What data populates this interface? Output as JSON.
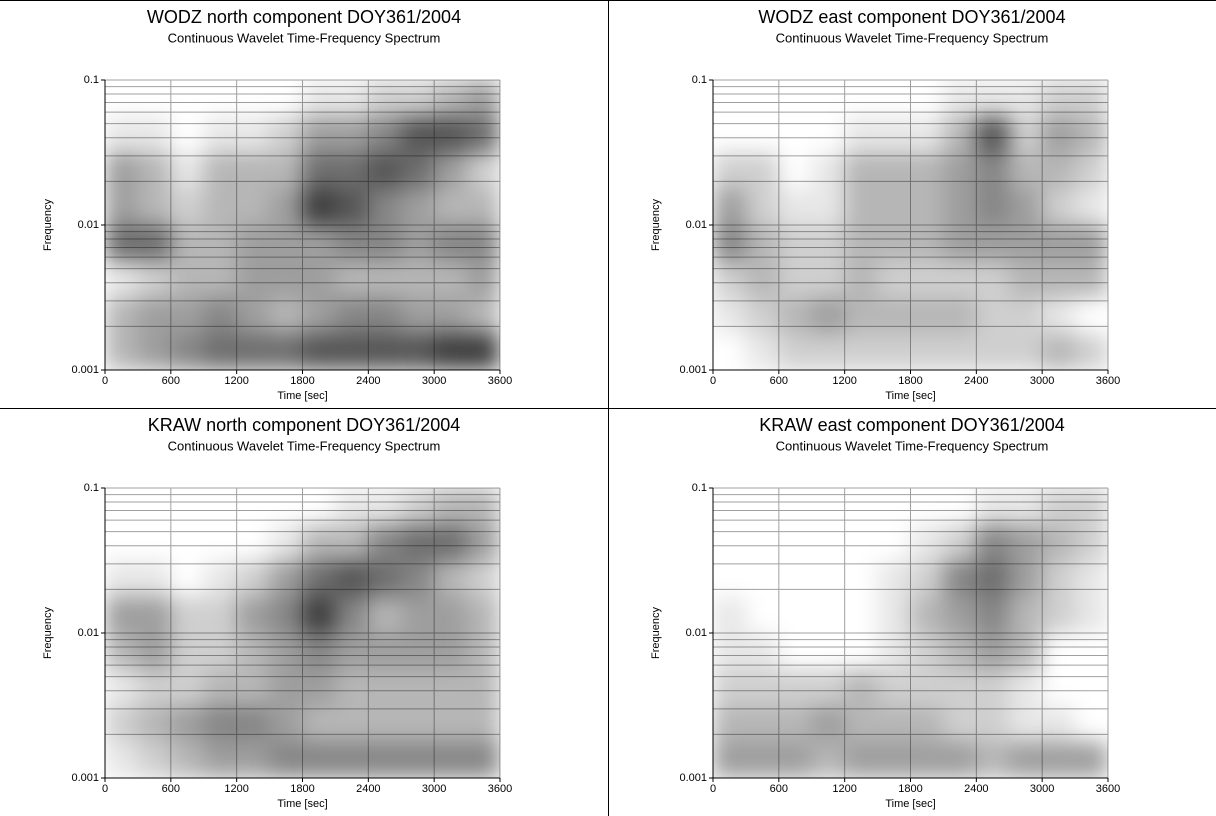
{
  "chart_data": [
    {
      "type": "heatmap",
      "title": "WODZ north component DOY361/2004",
      "subtitle": "Continuous Wavelet Time-Frequency Spectrum",
      "xlabel": "Time [sec]",
      "ylabel": "Frequency",
      "xlim": [
        0,
        3600
      ],
      "xticks": [
        0,
        600,
        1200,
        1800,
        2400,
        3000,
        3600
      ],
      "ylim": [
        0.001,
        0.1
      ],
      "yticks": [
        0.001,
        0.01,
        0.1
      ],
      "yscale": "log",
      "grid": true,
      "yminor": [
        0.002,
        0.003,
        0.004,
        0.005,
        0.006,
        0.007,
        0.008,
        0.009,
        0.02,
        0.03,
        0.04,
        0.05,
        0.06,
        0.07,
        0.08,
        0.09
      ],
      "xbins": [
        0,
        300,
        600,
        900,
        1200,
        1500,
        1800,
        2100,
        2400,
        2700,
        3000,
        3300,
        3600
      ],
      "ybins": [
        0.001,
        0.00178,
        0.00316,
        0.00562,
        0.01,
        0.0178,
        0.0316,
        0.0562,
        0.1
      ],
      "z": [
        [
          0.3,
          0.4,
          0.5,
          0.6,
          0.6,
          0.6,
          0.7,
          0.7,
          0.7,
          0.7,
          0.8,
          0.8
        ],
        [
          0.3,
          0.4,
          0.4,
          0.5,
          0.4,
          0.3,
          0.4,
          0.5,
          0.5,
          0.4,
          0.4,
          0.3
        ],
        [
          0.1,
          0.2,
          0.3,
          0.3,
          0.4,
          0.4,
          0.4,
          0.3,
          0.3,
          0.3,
          0.3,
          0.4
        ],
        [
          0.6,
          0.6,
          0.3,
          0.3,
          0.4,
          0.4,
          0.4,
          0.5,
          0.5,
          0.4,
          0.5,
          0.5
        ],
        [
          0.4,
          0.3,
          0.2,
          0.3,
          0.3,
          0.4,
          0.8,
          0.7,
          0.5,
          0.4,
          0.3,
          0.3
        ],
        [
          0.4,
          0.3,
          0.1,
          0.3,
          0.3,
          0.3,
          0.6,
          0.6,
          0.7,
          0.6,
          0.4,
          0.2
        ],
        [
          0.1,
          0.1,
          0,
          0.1,
          0.1,
          0.2,
          0.4,
          0.4,
          0.5,
          0.7,
          0.7,
          0.6
        ],
        [
          0,
          0,
          0,
          0,
          0,
          0,
          0.1,
          0.1,
          0.2,
          0.2,
          0.3,
          0.4
        ]
      ]
    },
    {
      "type": "heatmap",
      "title": "WODZ east component DOY361/2004",
      "subtitle": "Continuous Wavelet Time-Frequency Spectrum",
      "xlabel": "Time [sec]",
      "ylabel": "Frequency",
      "xlim": [
        0,
        3600
      ],
      "xticks": [
        0,
        600,
        1200,
        1800,
        2400,
        3000,
        3600
      ],
      "ylim": [
        0.001,
        0.1
      ],
      "yticks": [
        0.001,
        0.01,
        0.1
      ],
      "yscale": "log",
      "grid": true,
      "yminor": [
        0.002,
        0.003,
        0.004,
        0.005,
        0.006,
        0.007,
        0.008,
        0.009,
        0.02,
        0.03,
        0.04,
        0.05,
        0.06,
        0.07,
        0.08,
        0.09
      ],
      "xbins": [
        0,
        300,
        600,
        900,
        1200,
        1500,
        1800,
        2100,
        2400,
        2700,
        3000,
        3300,
        3600
      ],
      "ybins": [
        0.001,
        0.00178,
        0.00316,
        0.00562,
        0.01,
        0.0178,
        0.0316,
        0.0562,
        0.1
      ],
      "z": [
        [
          0,
          0.1,
          0.2,
          0.2,
          0.2,
          0.2,
          0.2,
          0.2,
          0.2,
          0.2,
          0.3,
          0.2
        ],
        [
          0.1,
          0.2,
          0.3,
          0.4,
          0.3,
          0.3,
          0.3,
          0.3,
          0.2,
          0.2,
          0.1,
          0
        ],
        [
          0.2,
          0.3,
          0.2,
          0.2,
          0.3,
          0.2,
          0.2,
          0.2,
          0.2,
          0.3,
          0.3,
          0.3
        ],
        [
          0.5,
          0.3,
          0.2,
          0.2,
          0.3,
          0.3,
          0.3,
          0.4,
          0.4,
          0.4,
          0.4,
          0.4
        ],
        [
          0.4,
          0.2,
          0.1,
          0.1,
          0.3,
          0.3,
          0.3,
          0.4,
          0.5,
          0.4,
          0.2,
          0.1
        ],
        [
          0.2,
          0.2,
          0,
          0.1,
          0.3,
          0.3,
          0.3,
          0.4,
          0.5,
          0.3,
          0.3,
          0.2
        ],
        [
          0,
          0,
          0,
          0,
          0.1,
          0.1,
          0.1,
          0.3,
          0.7,
          0.2,
          0.4,
          0.3
        ],
        [
          0,
          0,
          0,
          0,
          0,
          0,
          0,
          0.1,
          0.1,
          0.1,
          0.2,
          0.2
        ]
      ]
    },
    {
      "type": "heatmap",
      "title": "KRAW north component DOY361/2004",
      "subtitle": "Continuous Wavelet Time-Frequency Spectrum",
      "xlabel": "Time [sec]",
      "ylabel": "Frequency",
      "xlim": [
        0,
        3600
      ],
      "xticks": [
        0,
        600,
        1200,
        1800,
        2400,
        3000,
        3600
      ],
      "ylim": [
        0.001,
        0.1
      ],
      "yticks": [
        0.001,
        0.01,
        0.1
      ],
      "yscale": "log",
      "grid": true,
      "yminor": [
        0.002,
        0.003,
        0.004,
        0.005,
        0.006,
        0.007,
        0.008,
        0.009,
        0.02,
        0.03,
        0.04,
        0.05,
        0.06,
        0.07,
        0.08,
        0.09
      ],
      "xbins": [
        0,
        300,
        600,
        900,
        1200,
        1500,
        1800,
        2100,
        2400,
        2700,
        3000,
        3300,
        3600
      ],
      "ybins": [
        0.001,
        0.00178,
        0.00316,
        0.00562,
        0.01,
        0.0178,
        0.0316,
        0.0562,
        0.1
      ],
      "z": [
        [
          0.1,
          0.2,
          0.3,
          0.4,
          0.4,
          0.5,
          0.5,
          0.5,
          0.5,
          0.5,
          0.5,
          0.5
        ],
        [
          0.2,
          0.3,
          0.4,
          0.5,
          0.5,
          0.4,
          0.3,
          0.3,
          0.3,
          0.3,
          0.3,
          0.3
        ],
        [
          0.1,
          0.2,
          0.2,
          0.3,
          0.3,
          0.4,
          0.4,
          0.3,
          0.3,
          0.3,
          0.3,
          0.3
        ],
        [
          0.3,
          0.4,
          0.2,
          0.2,
          0.3,
          0.4,
          0.5,
          0.4,
          0.4,
          0.4,
          0.4,
          0.3
        ],
        [
          0.4,
          0.4,
          0.2,
          0.2,
          0.4,
          0.5,
          0.8,
          0.5,
          0.3,
          0.4,
          0.4,
          0.3
        ],
        [
          0.1,
          0.1,
          0,
          0.1,
          0.2,
          0.4,
          0.6,
          0.7,
          0.6,
          0.5,
          0.3,
          0.2
        ],
        [
          0,
          0,
          0,
          0,
          0,
          0.1,
          0.3,
          0.3,
          0.5,
          0.6,
          0.6,
          0.4
        ],
        [
          0,
          0,
          0,
          0,
          0,
          0,
          0,
          0.1,
          0.1,
          0.2,
          0.3,
          0.3
        ]
      ]
    },
    {
      "type": "heatmap",
      "title": "KRAW east component DOY361/2004",
      "subtitle": "Continuous Wavelet Time-Frequency Spectrum",
      "xlabel": "Time [sec]",
      "ylabel": "Frequency",
      "xlim": [
        0,
        3600
      ],
      "xticks": [
        0,
        600,
        1200,
        1800,
        2400,
        3000,
        3600
      ],
      "ylim": [
        0.001,
        0.1
      ],
      "yticks": [
        0.001,
        0.01,
        0.1
      ],
      "yscale": "log",
      "grid": true,
      "yminor": [
        0.002,
        0.003,
        0.004,
        0.005,
        0.006,
        0.007,
        0.008,
        0.009,
        0.02,
        0.03,
        0.04,
        0.05,
        0.06,
        0.07,
        0.08,
        0.09
      ],
      "xbins": [
        0,
        300,
        600,
        900,
        1200,
        1500,
        1800,
        2100,
        2400,
        2700,
        3000,
        3300,
        3600
      ],
      "ybins": [
        0.001,
        0.00178,
        0.00316,
        0.00562,
        0.01,
        0.0178,
        0.0316,
        0.0562,
        0.1
      ],
      "z": [
        [
          0.4,
          0.4,
          0.4,
          0.3,
          0.4,
          0.4,
          0.4,
          0.4,
          0.3,
          0.4,
          0.4,
          0.4
        ],
        [
          0.3,
          0.3,
          0.3,
          0.4,
          0.3,
          0.3,
          0.3,
          0.2,
          0.2,
          0.1,
          0.1,
          0
        ],
        [
          0.2,
          0.2,
          0.2,
          0.2,
          0.3,
          0.2,
          0.2,
          0.2,
          0.2,
          0.1,
          0,
          0
        ],
        [
          0.1,
          0.1,
          0,
          0,
          0,
          0.1,
          0.2,
          0.3,
          0.4,
          0.3,
          0,
          0
        ],
        [
          0.1,
          0,
          0,
          0,
          0,
          0.1,
          0.3,
          0.4,
          0.5,
          0.3,
          0.2,
          0.1
        ],
        [
          0,
          0,
          0,
          0,
          0,
          0.1,
          0.2,
          0.5,
          0.6,
          0.4,
          0.2,
          0.1
        ],
        [
          0,
          0,
          0,
          0,
          0,
          0,
          0.1,
          0.2,
          0.5,
          0.4,
          0.3,
          0.2
        ],
        [
          0,
          0,
          0,
          0,
          0,
          0,
          0,
          0,
          0.1,
          0.1,
          0.2,
          0.2
        ]
      ]
    }
  ]
}
